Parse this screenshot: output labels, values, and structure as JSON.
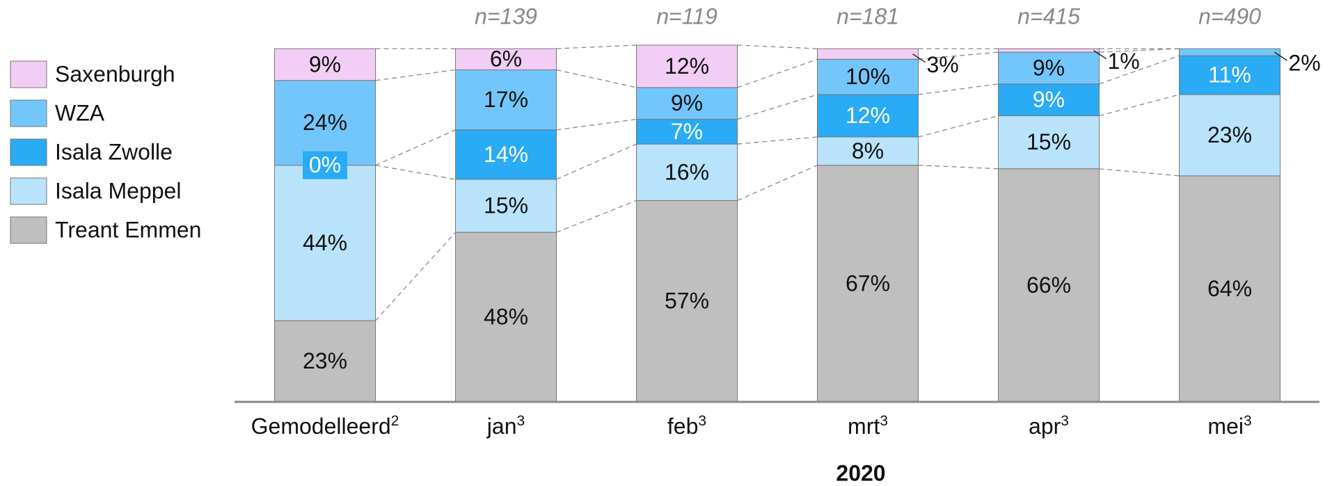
{
  "chart_data": {
    "type": "stacked_bar",
    "ylim": [
      0,
      100
    ],
    "categories": [
      "Gemodelleerd",
      "jan",
      "feb",
      "mrt",
      "apr",
      "mei"
    ],
    "category_notes": [
      "2",
      "3",
      "3",
      "3",
      "3",
      "3"
    ],
    "n_labels": [
      null,
      "n=139",
      "n=119",
      "n=181",
      "n=415",
      "n=490"
    ],
    "x_title": "2020",
    "series": [
      {
        "name": "Treant Emmen",
        "color": "#bfbfbf",
        "label_color": "#111111",
        "values": [
          23,
          48,
          57,
          67,
          66,
          64
        ],
        "value_labels": [
          "23%",
          "48%",
          "57%",
          "67%",
          "66%",
          "64%"
        ]
      },
      {
        "name": "Isala Meppel",
        "color": "#b9e3fb",
        "label_color": "#111111",
        "values": [
          44,
          15,
          16,
          8,
          15,
          23
        ],
        "value_labels": [
          "44%",
          "15%",
          "16%",
          "8%",
          "15%",
          "23%"
        ]
      },
      {
        "name": "Isala Zwolle",
        "color": "#29abf5",
        "label_color": "#ffffff",
        "values": [
          0,
          14,
          7,
          12,
          9,
          11
        ],
        "value_labels": [
          "0%",
          "14%",
          "7%",
          "12%",
          "9%",
          "11%"
        ]
      },
      {
        "name": "WZA",
        "color": "#73c6fb",
        "label_color": "#111111",
        "values": [
          24,
          17,
          9,
          10,
          9,
          2
        ],
        "value_labels": [
          "24%",
          "17%",
          "9%",
          "10%",
          "9%",
          "2%"
        ]
      },
      {
        "name": "Saxenburgh",
        "color": "#f2cdf5",
        "label_color": "#111111",
        "values": [
          9,
          6,
          12,
          3,
          1,
          0
        ],
        "value_labels": [
          "9%",
          "6%",
          "12%",
          "3%",
          "1%",
          null
        ]
      }
    ]
  }
}
